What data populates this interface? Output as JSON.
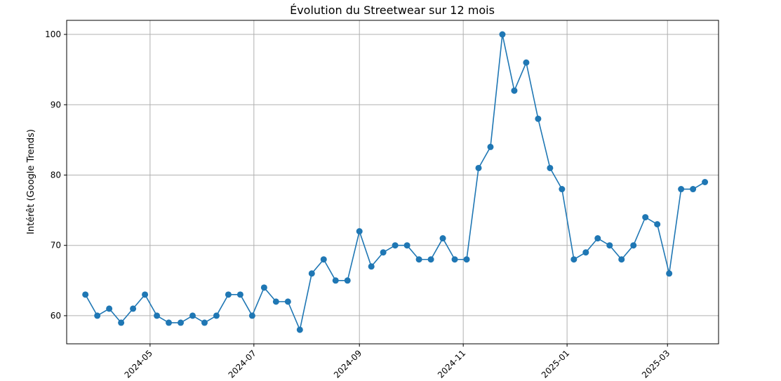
{
  "chart_data": {
    "type": "line",
    "title": "Évolution du Streetwear sur 12 mois",
    "xlabel": "",
    "ylabel": "Intérêt (Google Trends)",
    "ylim": [
      56,
      102
    ],
    "xlim": [
      "2024-03-13",
      "2025-03-31"
    ],
    "grid": true,
    "color": "#1f77b4",
    "x_ticks": [
      "2024-05",
      "2024-07",
      "2024-09",
      "2024-11",
      "2025-01",
      "2025-03"
    ],
    "y_ticks": [
      60,
      70,
      80,
      90,
      100
    ],
    "x": [
      "2024-03-24",
      "2024-03-31",
      "2024-04-07",
      "2024-04-14",
      "2024-04-21",
      "2024-04-28",
      "2024-05-05",
      "2024-05-12",
      "2024-05-19",
      "2024-05-26",
      "2024-06-02",
      "2024-06-09",
      "2024-06-16",
      "2024-06-23",
      "2024-06-30",
      "2024-07-07",
      "2024-07-14",
      "2024-07-21",
      "2024-07-28",
      "2024-08-04",
      "2024-08-11",
      "2024-08-18",
      "2024-08-25",
      "2024-09-01",
      "2024-09-08",
      "2024-09-15",
      "2024-09-22",
      "2024-09-29",
      "2024-10-06",
      "2024-10-13",
      "2024-10-20",
      "2024-10-27",
      "2024-11-03",
      "2024-11-10",
      "2024-11-17",
      "2024-11-24",
      "2024-12-01",
      "2024-12-08",
      "2024-12-15",
      "2024-12-22",
      "2024-12-29",
      "2025-01-05",
      "2025-01-12",
      "2025-01-19",
      "2025-01-26",
      "2025-02-02",
      "2025-02-09",
      "2025-02-16",
      "2025-02-23",
      "2025-03-02",
      "2025-03-09",
      "2025-03-16",
      "2025-03-23"
    ],
    "values": [
      63,
      60,
      61,
      59,
      61,
      63,
      60,
      59,
      59,
      60,
      59,
      60,
      63,
      63,
      60,
      64,
      62,
      62,
      58,
      66,
      68,
      65,
      65,
      72,
      67,
      69,
      70,
      70,
      68,
      68,
      71,
      68,
      68,
      81,
      84,
      100,
      92,
      96,
      88,
      81,
      78,
      68,
      69,
      71,
      70,
      68,
      70,
      74,
      73,
      66,
      78,
      78,
      79
    ]
  }
}
